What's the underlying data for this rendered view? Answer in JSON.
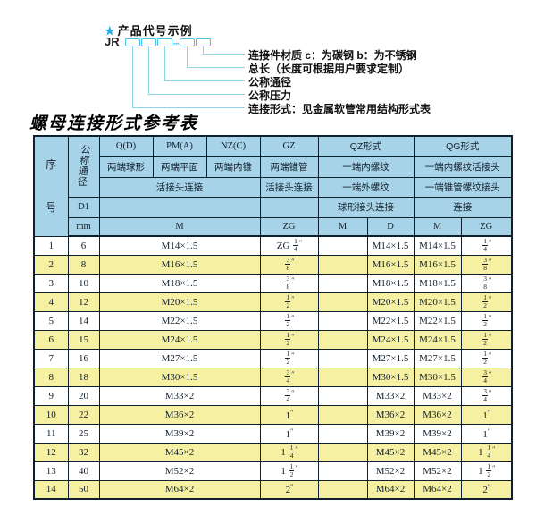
{
  "product_code": {
    "star": "★",
    "heading": "产品代号示例",
    "prefix": "JR",
    "dash": "–",
    "labels": [
      "连接件材质  c：为碳钢  b：为不锈钢",
      "总长（长度可根据用户要求定制）",
      "公称通径",
      "公称压力",
      "连接形式：见金属软管常用结构形式表"
    ]
  },
  "table": {
    "title": "螺母连接形式参考表",
    "header": {
      "seq": "序号",
      "dn": "公称通径",
      "d1": "D1",
      "mm": "mm",
      "forms": [
        "Q(D)",
        "PM(A)",
        "NZ(C)",
        "GZ",
        "QZ形式",
        "QG形式"
      ],
      "row2": [
        "两端球形",
        "两端平面",
        "两端内锥",
        "两端锥管",
        "一端内螺纹",
        "一端内螺纹活接头"
      ],
      "row3": [
        "活接头连接",
        "活接头连接",
        "一端外螺纹",
        "一端锥管螺纹接头"
      ],
      "row4": [
        "球形接头连接",
        "连接"
      ],
      "row5": [
        "M",
        "ZG",
        "M",
        "D",
        "M",
        "ZG"
      ]
    },
    "rows": [
      {
        "no": "1",
        "dn": "6",
        "m": "M14×1.5",
        "gz": "ZG 1/4″",
        "qz_m": "",
        "qz_d": "M14×1.5",
        "qg_m": "M14×1.5",
        "qg_zg": "1/4″"
      },
      {
        "no": "2",
        "dn": "8",
        "m": "M16×1.5",
        "gz": "3/8″",
        "qz_m": "",
        "qz_d": "M16×1.5",
        "qg_m": "M16×1.5",
        "qg_zg": "3/8″"
      },
      {
        "no": "3",
        "dn": "10",
        "m": "M18×1.5",
        "gz": "3/8″",
        "qz_m": "",
        "qz_d": "M18×1.5",
        "qg_m": "M18×1.5",
        "qg_zg": "3/8″"
      },
      {
        "no": "4",
        "dn": "12",
        "m": "M20×1.5",
        "gz": "1/2″",
        "qz_m": "",
        "qz_d": "M20×1.5",
        "qg_m": "M20×1.5",
        "qg_zg": "1/2″"
      },
      {
        "no": "5",
        "dn": "14",
        "m": "M22×1.5",
        "gz": "1/2″",
        "qz_m": "",
        "qz_d": "M22×1.5",
        "qg_m": "M22×1.5",
        "qg_zg": "1/2″"
      },
      {
        "no": "6",
        "dn": "15",
        "m": "M24×1.5",
        "gz": "1/2″",
        "qz_m": "",
        "qz_d": "M24×1.5",
        "qg_m": "M24×1.5",
        "qg_zg": "1/2″"
      },
      {
        "no": "7",
        "dn": "16",
        "m": "M27×1.5",
        "gz": "1/2″",
        "qz_m": "",
        "qz_d": "M27×1.5",
        "qg_m": "M27×1.5",
        "qg_zg": "1/2″"
      },
      {
        "no": "8",
        "dn": "18",
        "m": "M30×1.5",
        "gz": "3/4″",
        "qz_m": "",
        "qz_d": "M30×1.5",
        "qg_m": "M30×1.5",
        "qg_zg": "3/4″"
      },
      {
        "no": "9",
        "dn": "20",
        "m": "M33×2",
        "gz": "3/4″",
        "qz_m": "",
        "qz_d": "M33×2",
        "qg_m": "M33×2",
        "qg_zg": "3/4″"
      },
      {
        "no": "10",
        "dn": "22",
        "m": "M36×2",
        "gz": "1″",
        "qz_m": "",
        "qz_d": "M36×2",
        "qg_m": "M36×2",
        "qg_zg": "1″"
      },
      {
        "no": "11",
        "dn": "25",
        "m": "M39×2",
        "gz": "1″",
        "qz_m": "",
        "qz_d": "M39×2",
        "qg_m": "M39×2",
        "qg_zg": "1″"
      },
      {
        "no": "12",
        "dn": "32",
        "m": "M45×2",
        "gz": "1 1/4″",
        "qz_m": "",
        "qz_d": "M45×2",
        "qg_m": "M45×2",
        "qg_zg": "1 1/4″"
      },
      {
        "no": "13",
        "dn": "40",
        "m": "M52×2",
        "gz": "1 1/2″",
        "qz_m": "",
        "qz_d": "M52×2",
        "qg_m": "M52×2",
        "qg_zg": "1 1/2″"
      },
      {
        "no": "14",
        "dn": "50",
        "m": "M64×2",
        "gz": "2″",
        "qz_m": "",
        "qz_d": "M64×2",
        "qg_m": "M64×2",
        "qg_zg": "2″"
      }
    ]
  },
  "colors": {
    "header_blue": "#a7d3e9",
    "row_yellow": "#f6f0a2",
    "row_white": "#ffffff",
    "border": "#0f1f2d",
    "cyan_line": "#8ed5ea",
    "star_blue": "#2aabe2"
  }
}
